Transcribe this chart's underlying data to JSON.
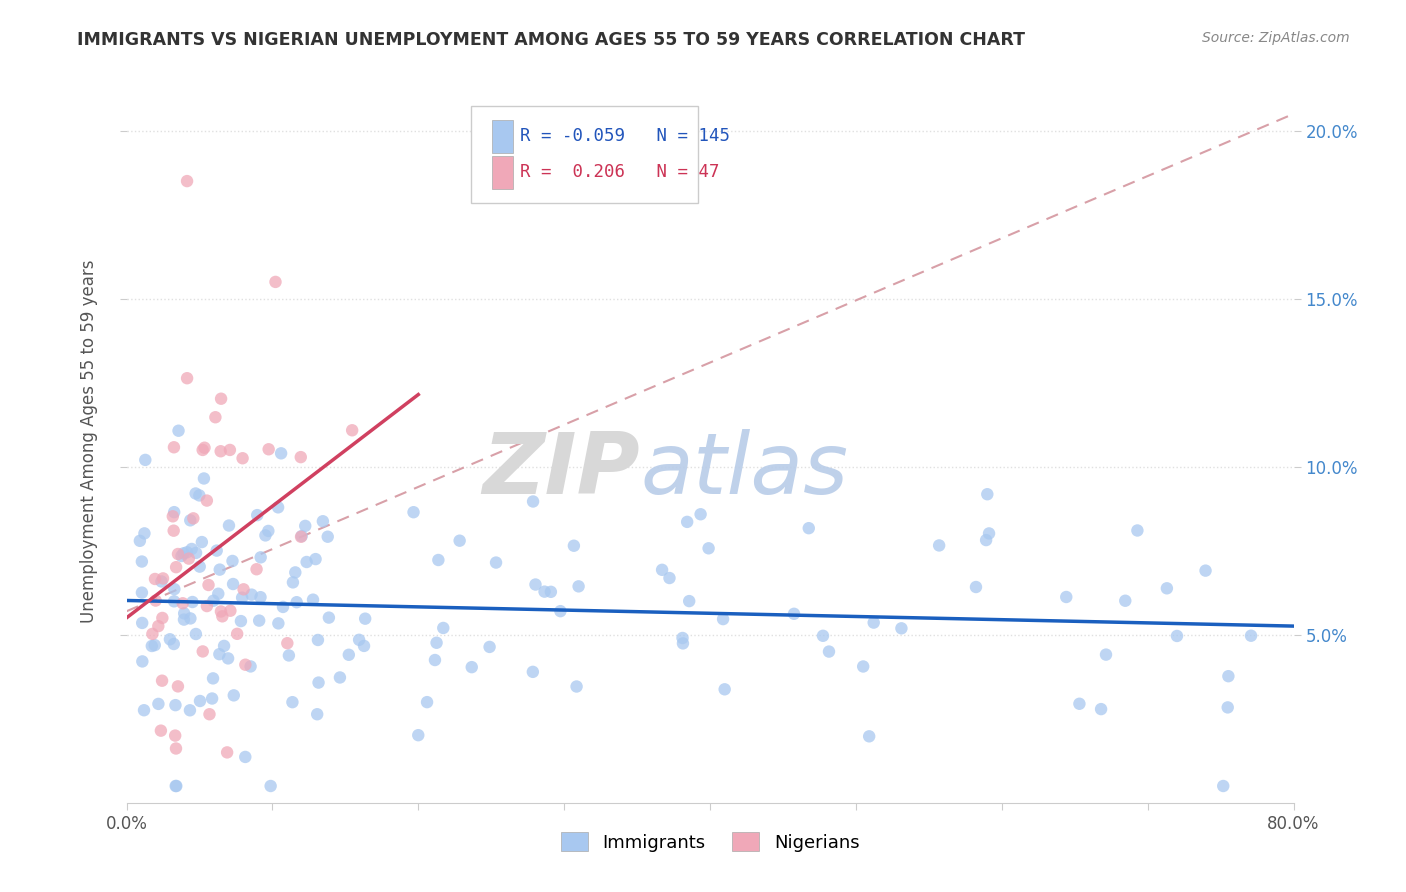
{
  "title": "IMMIGRANTS VS NIGERIAN UNEMPLOYMENT AMONG AGES 55 TO 59 YEARS CORRELATION CHART",
  "source": "Source: ZipAtlas.com",
  "ylabel": "Unemployment Among Ages 55 to 59 years",
  "xlim": [
    0.0,
    0.8
  ],
  "ylim": [
    0.0,
    0.215
  ],
  "R_immigrants": -0.059,
  "N_immigrants": 145,
  "R_nigerians": 0.206,
  "N_nigerians": 47,
  "immigrants_color": "#a8c8f0",
  "nigerians_color": "#f0a8b8",
  "trend_immigrants_color": "#1a5fbf",
  "trend_nigerians_color": "#d04060",
  "trend_dashed_color": "#d8a0a8",
  "watermark_zip": "ZIP",
  "watermark_atlas": "atlas",
  "background_color": "#ffffff",
  "grid_color": "#e0e0e0",
  "title_color": "#333333",
  "source_color": "#888888",
  "axis_label_color": "#555555",
  "tick_label_color": "#4488cc",
  "legend_text_color_imm": "#2255bb",
  "legend_text_color_nig": "#cc3355"
}
